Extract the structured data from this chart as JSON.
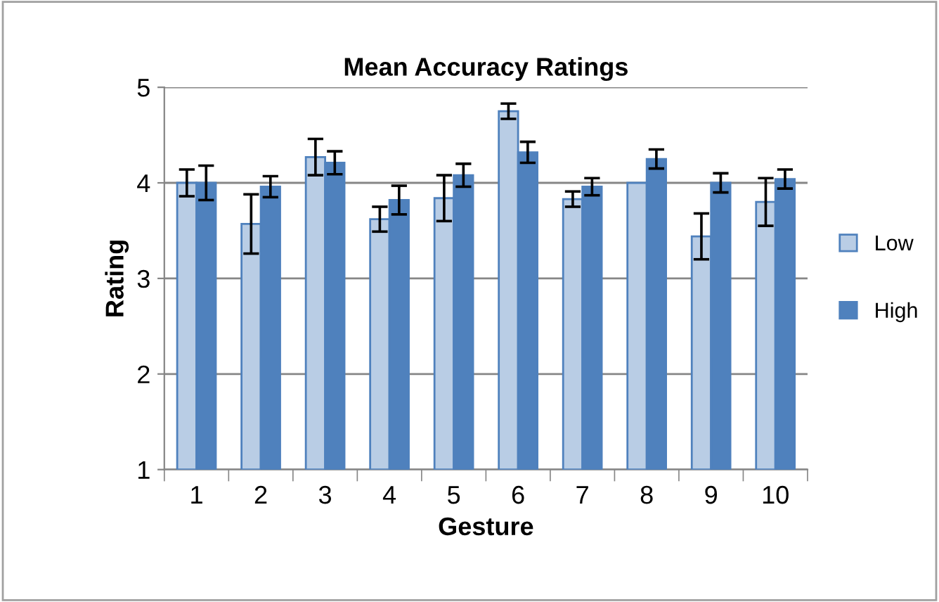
{
  "chart_data": {
    "type": "bar",
    "title": "Mean Accuracy Ratings",
    "xlabel": "Gesture",
    "ylabel": "Rating",
    "categories": [
      "1",
      "2",
      "3",
      "4",
      "5",
      "6",
      "7",
      "8",
      "9",
      "10"
    ],
    "series": [
      {
        "name": "Low",
        "color": "#b9cde5",
        "values": [
          4.0,
          3.57,
          4.27,
          3.62,
          3.84,
          4.75,
          3.83,
          4.0,
          3.44,
          3.8
        ],
        "errors": [
          0.14,
          0.31,
          0.19,
          0.13,
          0.24,
          0.08,
          0.08,
          null,
          0.24,
          0.25
        ]
      },
      {
        "name": "High",
        "color": "#4f81bd",
        "values": [
          4.0,
          3.96,
          4.21,
          3.82,
          4.08,
          4.32,
          3.96,
          4.25,
          4.0,
          4.04
        ],
        "errors": [
          0.18,
          0.11,
          0.12,
          0.15,
          0.12,
          0.11,
          0.09,
          0.1,
          0.1,
          0.1
        ]
      }
    ],
    "ylim": [
      1,
      5
    ],
    "yticks": [
      1,
      2,
      3,
      4,
      5
    ],
    "grid": "y",
    "legend": "right"
  }
}
